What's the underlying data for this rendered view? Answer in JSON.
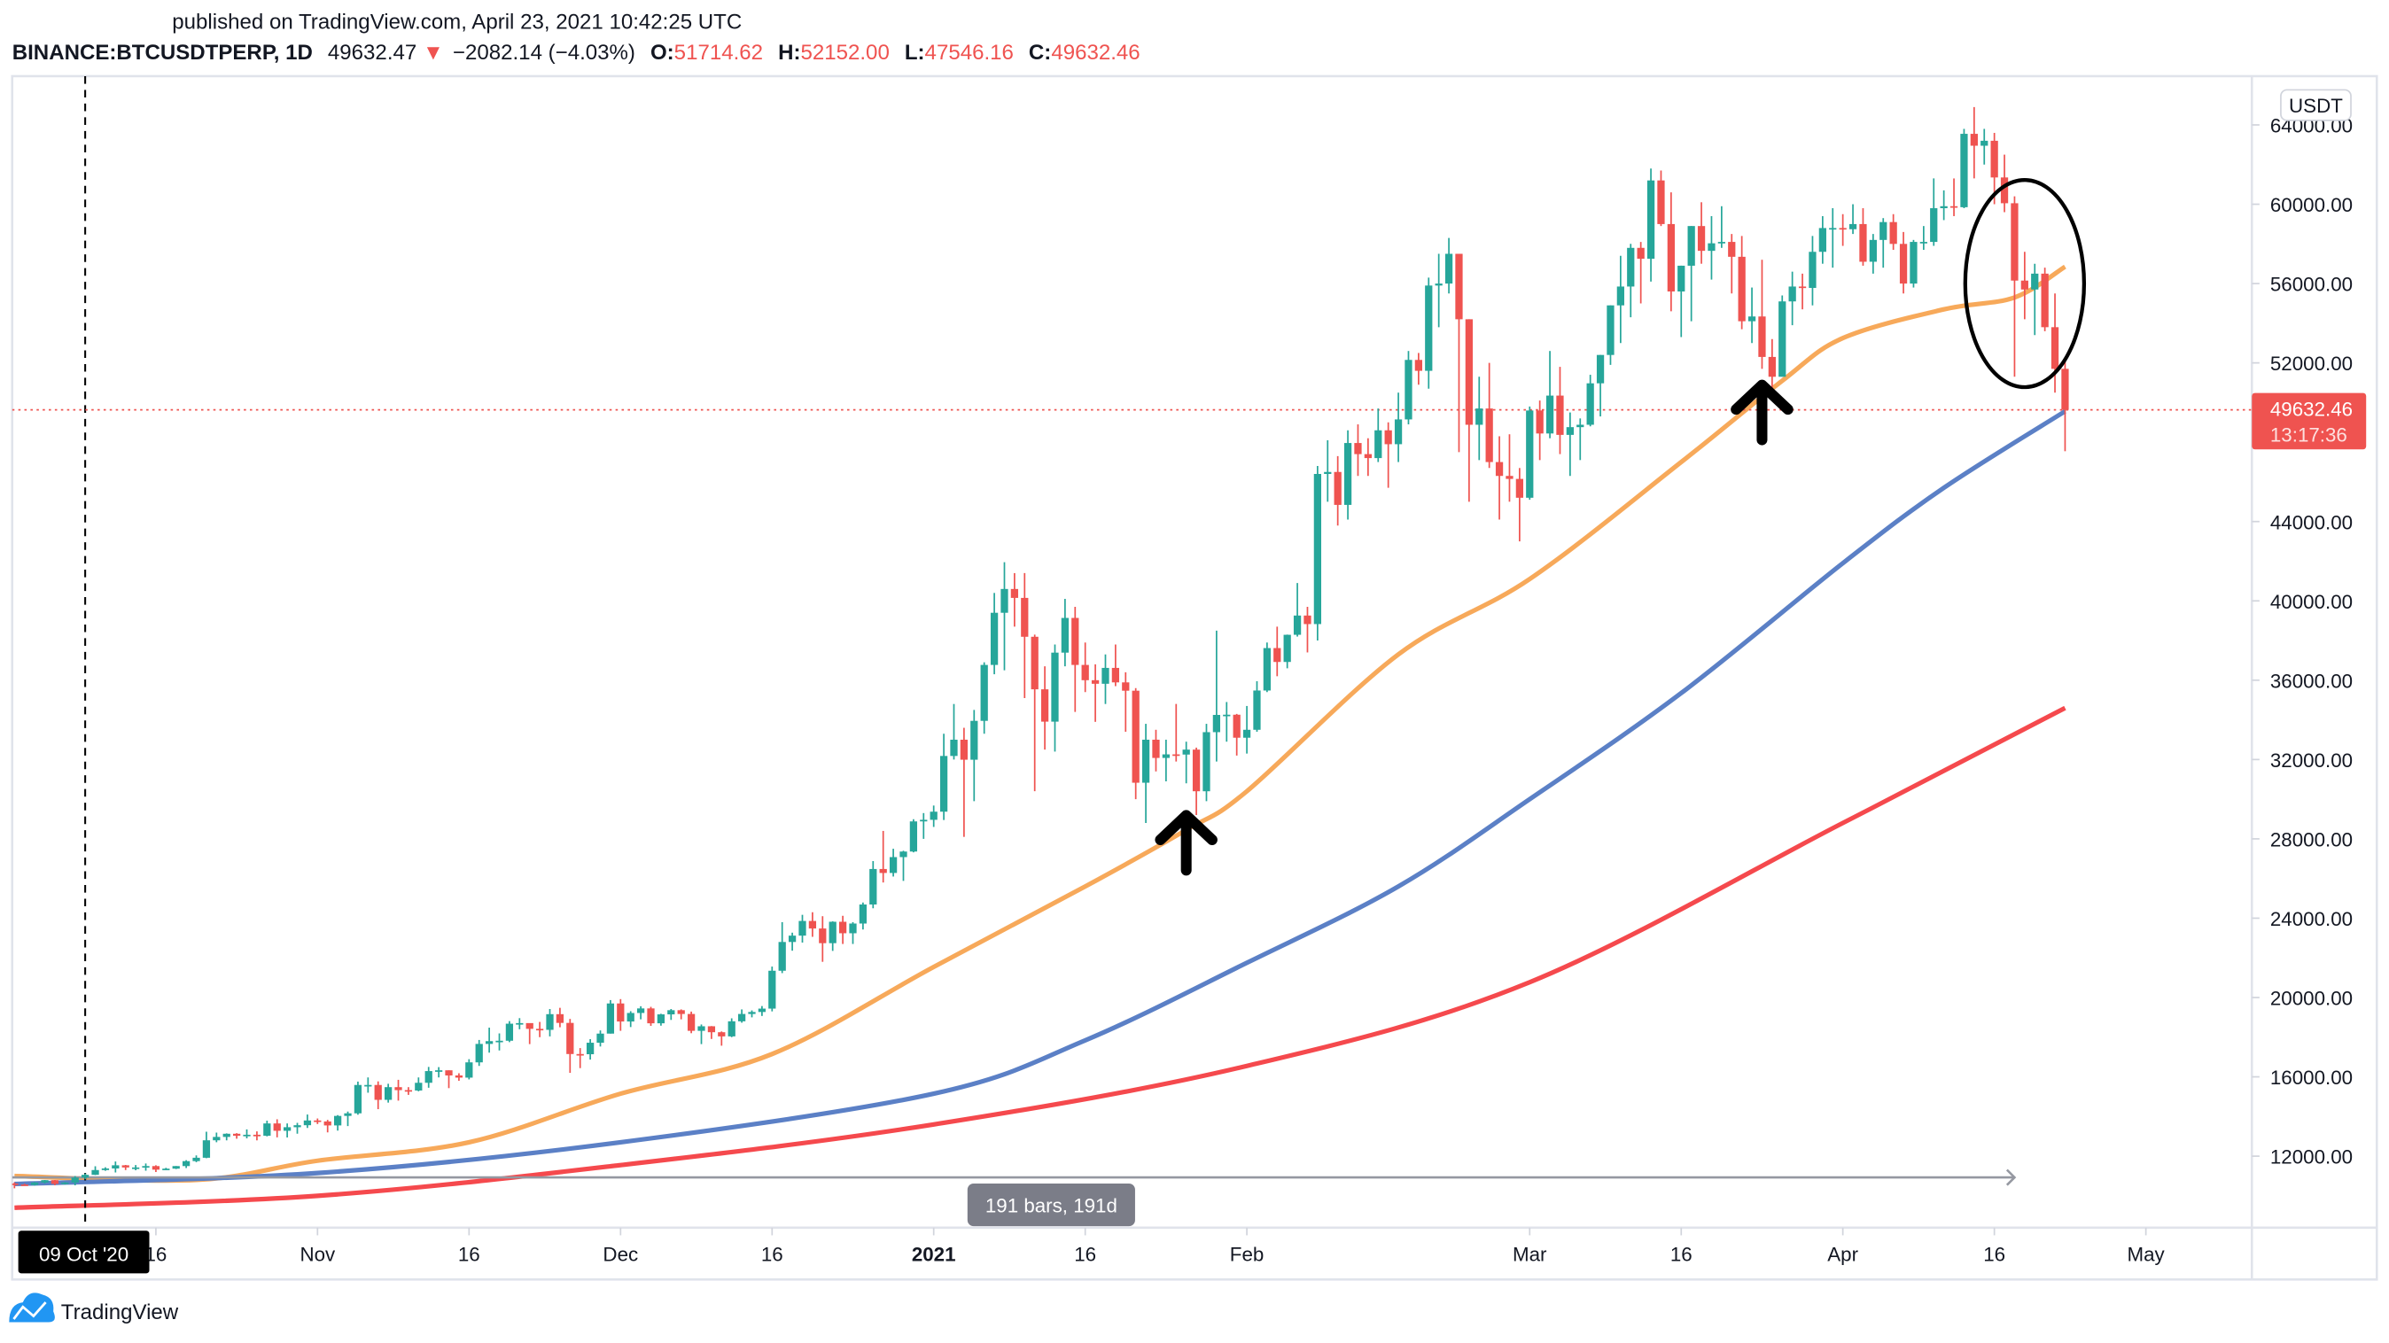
{
  "header": {
    "published": "published on TradingView.com, April 23, 2021 10:42:25 UTC",
    "symbol": "BINANCE:BTCUSDTPERP, 1D",
    "last": "49632.47",
    "change": "−2082.14 (−4.03%)",
    "o_label": "O:",
    "o": "51714.62",
    "h_label": "H:",
    "h": "52152.00",
    "l_label": "L:",
    "l": "47546.16",
    "c_label": "C:",
    "c": "49632.46"
  },
  "price_axis": {
    "currency": "USDT",
    "ticks": [
      "12000.00",
      "16000.00",
      "20000.00",
      "24000.00",
      "28000.00",
      "32000.00",
      "36000.00",
      "40000.00",
      "44000.00",
      "52000.00",
      "56000.00",
      "60000.00",
      "64000.00"
    ],
    "last_price": "49632.46",
    "countdown": "13:17:36"
  },
  "time_axis": {
    "crosshair_label": "09 Oct '20",
    "ticks": [
      {
        "label": "16",
        "date": "2020-10-16"
      },
      {
        "label": "Nov",
        "date": "2020-11-01"
      },
      {
        "label": "16",
        "date": "2020-11-16"
      },
      {
        "label": "Dec",
        "date": "2020-12-01"
      },
      {
        "label": "16",
        "date": "2020-12-16"
      },
      {
        "label": "2021",
        "date": "2021-01-01",
        "bold": true
      },
      {
        "label": "16",
        "date": "2021-01-16"
      },
      {
        "label": "Feb",
        "date": "2021-02-01"
      },
      {
        "label": "Mar",
        "date": "2021-03-01"
      },
      {
        "label": "16",
        "date": "2021-03-16"
      },
      {
        "label": "Apr",
        "date": "2021-04-01"
      },
      {
        "label": "16",
        "date": "2021-04-16"
      },
      {
        "label": "May",
        "date": "2021-05-01"
      }
    ]
  },
  "measure": {
    "label": "191 bars, 191d",
    "from": "2020-10-09",
    "to": "2021-04-18"
  },
  "logo": {
    "text": "TradingView"
  },
  "colors": {
    "up": "#26a69a",
    "down": "#ef5350",
    "ma_orange": "#f7a95a",
    "ma_blue": "#5b80c6",
    "ma_red": "#f5494d",
    "accent": "#2196f3"
  },
  "chart_data": {
    "type": "candlestick",
    "symbol": "BINANCE:BTCUSDTPERP",
    "interval": "1D",
    "start_date": "2020-10-02",
    "ylim": [
      8000,
      66000
    ],
    "grid": false,
    "first_open": 10620,
    "close": [
      10570,
      10550,
      10670,
      10790,
      10600,
      10670,
      10920,
      11060,
      11300,
      11380,
      11540,
      11430,
      11430,
      11500,
      11320,
      11370,
      11500,
      11750,
      11920,
      12800,
      12970,
      13130,
      13030,
      13080,
      13030,
      13650,
      13280,
      13460,
      13560,
      13800,
      13750,
      13550,
      14030,
      14160,
      15590,
      15590,
      14840,
      15480,
      15330,
      15310,
      15700,
      16290,
      16330,
      16070,
      15960,
      16730,
      17660,
      17800,
      17820,
      18680,
      18710,
      18420,
      18370,
      19160,
      18720,
      17150,
      17140,
      17720,
      18180,
      19700,
      18790,
      19220,
      19450,
      18700,
      19150,
      19360,
      19170,
      18320,
      18550,
      18250,
      18040,
      18800,
      19170,
      19270,
      19440,
      21350,
      22800,
      23120,
      23860,
      23480,
      22740,
      23820,
      23240,
      23730,
      24690,
      26480,
      26280,
      27080,
      27360,
      28880,
      28960,
      29370,
      32180,
      33000,
      31990,
      33950,
      36770,
      39400,
      40600,
      40150,
      38190,
      35540,
      33910,
      37390,
      39140,
      36770,
      36000,
      35820,
      36620,
      35890,
      35470,
      30830,
      33000,
      32080,
      32260,
      32250,
      32500,
      30400,
      33380,
      34250,
      34260,
      33100,
      33500,
      35480,
      37620,
      36920,
      38290,
      39260,
      38830,
      46400,
      46500,
      44840,
      47960,
      47400,
      47200,
      48600,
      47900,
      49150,
      52150,
      51600,
      55900,
      56000,
      57500,
      54200,
      48880,
      49700,
      47000,
      46300,
      46150,
      45200,
      49600,
      48440,
      50350,
      48370,
      48760,
      48880,
      50970,
      52400,
      54900,
      55850,
      57800,
      57250,
      61200,
      59000,
      55600,
      56900,
      58900,
      57650,
      58030,
      58100,
      57350,
      54100,
      54340,
      52300,
      51300,
      55100,
      55850,
      55780,
      57600,
      58800,
      58800,
      58740,
      59000,
      57100,
      58200,
      59100,
      58000,
      56000,
      58100,
      58100,
      59800,
      59900,
      59850,
      63550,
      62950,
      63200,
      61350,
      60050,
      56150,
      55700,
      56500,
      53800,
      51700,
      49632.46
    ],
    "high": [
      10680,
      10610,
      10700,
      10800,
      10800,
      10690,
      11000,
      11120,
      11490,
      11440,
      11730,
      11560,
      11550,
      11630,
      11540,
      11410,
      11500,
      11800,
      12040,
      13230,
      13190,
      13150,
      13160,
      13350,
      13250,
      13790,
      13860,
      13650,
      13680,
      14100,
      13900,
      13830,
      14070,
      14250,
      15760,
      15970,
      15770,
      15650,
      15850,
      15480,
      15970,
      16500,
      16490,
      16330,
      16180,
      16890,
      17860,
      18480,
      18190,
      18810,
      18960,
      18700,
      18770,
      19420,
      19480,
      18920,
      17450,
      17900,
      18340,
      19870,
      19920,
      19310,
      19560,
      19530,
      19180,
      19420,
      19400,
      19290,
      18640,
      18560,
      18290,
      18950,
      19400,
      19350,
      19570,
      21560,
      23800,
      23270,
      24170,
      24300,
      24100,
      23840,
      24120,
      23800,
      24790,
      26880,
      28400,
      27500,
      27400,
      28990,
      29300,
      29680,
      33300,
      34800,
      33600,
      34500,
      36900,
      40400,
      41950,
      41400,
      41400,
      38300,
      36700,
      37800,
      40100,
      39700,
      37900,
      36800,
      37300,
      37800,
      36400,
      35600,
      33800,
      33500,
      33000,
      34800,
      32900,
      32600,
      33800,
      38500,
      34900,
      34300,
      34700,
      35950,
      37900,
      38700,
      38300,
      40900,
      39700,
      46800,
      48100,
      47300,
      48600,
      48900,
      48200,
      49700,
      49000,
      50500,
      52600,
      52500,
      56300,
      57500,
      58300,
      57500,
      54200,
      51300,
      52000,
      48300,
      48400,
      46700,
      49800,
      50100,
      52600,
      51800,
      49500,
      49200,
      51400,
      52400,
      54900,
      57400,
      58000,
      58100,
      61800,
      61700,
      60600,
      56900,
      58900,
      60100,
      59400,
      59900,
      58500,
      58400,
      55800,
      57200,
      53200,
      55400,
      56600,
      56500,
      58400,
      59400,
      59800,
      59500,
      60000,
      59800,
      58500,
      59300,
      59500,
      58600,
      58200,
      58900,
      61300,
      60700,
      61300,
      63800,
      64900,
      63800,
      63600,
      62500,
      60400,
      57600,
      57000,
      56800,
      55500,
      52152
    ],
    "low": [
      10380,
      10510,
      10520,
      10620,
      10530,
      10570,
      10530,
      10830,
      11050,
      11260,
      11180,
      11300,
      11290,
      11270,
      11200,
      11300,
      11350,
      11400,
      11700,
      11900,
      12700,
      12800,
      12880,
      12900,
      12800,
      13000,
      12950,
      12940,
      13130,
      13420,
      13620,
      13200,
      13290,
      13520,
      14090,
      15200,
      14370,
      14700,
      14800,
      15090,
      15270,
      15450,
      15970,
      15430,
      15800,
      15870,
      16550,
      17220,
      17330,
      17750,
      18400,
      17650,
      18000,
      18040,
      18500,
      16200,
      16440,
      16870,
      17530,
      18180,
      18320,
      18510,
      18900,
      18570,
      18580,
      18870,
      18900,
      18200,
      17650,
      17910,
      17570,
      18000,
      18730,
      19000,
      19070,
      19300,
      21230,
      22360,
      22770,
      23060,
      21800,
      22350,
      22700,
      22700,
      23430,
      24500,
      25800,
      26100,
      25880,
      27320,
      28000,
      28600,
      28950,
      32000,
      28100,
      29900,
      33300,
      36300,
      36500,
      38700,
      35100,
      30400,
      32500,
      32400,
      36700,
      34400,
      35400,
      33900,
      34800,
      35700,
      33400,
      30000,
      28800,
      31400,
      30900,
      31900,
      30800,
      29200,
      29900,
      31900,
      32900,
      32200,
      32300,
      33400,
      35400,
      36200,
      36600,
      38200,
      37400,
      38000,
      45000,
      43800,
      44100,
      46300,
      46300,
      47000,
      45700,
      47000,
      48900,
      50900,
      50700,
      53800,
      55500,
      47500,
      45000,
      47100,
      46700,
      44100,
      45000,
      43000,
      45100,
      47100,
      48200,
      47400,
      46300,
      47100,
      48800,
      49300,
      51900,
      53000,
      54300,
      55000,
      56100,
      58900,
      54600,
      53300,
      54100,
      57000,
      56200,
      57800,
      55500,
      53700,
      53000,
      51700,
      50400,
      51300,
      53900,
      54700,
      54900,
      57000,
      56800,
      57900,
      58500,
      56900,
      56500,
      56800,
      57700,
      55500,
      55800,
      57700,
      57900,
      59200,
      59400,
      59800,
      61300,
      62000,
      60000,
      59600,
      51300,
      54200,
      53400,
      53600,
      50500,
      47546.16
    ],
    "moving_averages": [
      {
        "color": "#f7a95a",
        "points": [
          [
            "2020-10-02",
            11000
          ],
          [
            "2020-10-20",
            10800
          ],
          [
            "2020-11-01",
            11770
          ],
          [
            "2020-11-16",
            12700
          ],
          [
            "2020-12-01",
            15150
          ],
          [
            "2020-12-16",
            17150
          ],
          [
            "2021-01-01",
            21540
          ],
          [
            "2021-01-16",
            25600
          ],
          [
            "2021-01-26",
            28450
          ],
          [
            "2021-02-01",
            30400
          ],
          [
            "2021-02-16",
            37300
          ],
          [
            "2021-03-01",
            41100
          ],
          [
            "2021-03-16",
            47000
          ],
          [
            "2021-03-26",
            51100
          ],
          [
            "2021-04-01",
            53250
          ],
          [
            "2021-04-11",
            54700
          ],
          [
            "2021-04-18",
            55300
          ],
          [
            "2021-04-23",
            56850
          ]
        ]
      },
      {
        "color": "#5b80c6",
        "points": [
          [
            "2020-10-02",
            10600
          ],
          [
            "2020-11-01",
            11150
          ],
          [
            "2020-12-01",
            12700
          ],
          [
            "2021-01-01",
            15150
          ],
          [
            "2021-01-16",
            17840
          ],
          [
            "2021-02-01",
            21750
          ],
          [
            "2021-02-16",
            25600
          ],
          [
            "2021-03-01",
            30000
          ],
          [
            "2021-03-16",
            35350
          ],
          [
            "2021-04-01",
            41900
          ],
          [
            "2021-04-11",
            45700
          ],
          [
            "2021-04-23",
            49560
          ]
        ]
      },
      {
        "color": "#f5494d",
        "points": [
          [
            "2020-10-02",
            9400
          ],
          [
            "2020-11-01",
            10000
          ],
          [
            "2020-12-01",
            11550
          ],
          [
            "2021-01-01",
            13600
          ],
          [
            "2021-02-01",
            16550
          ],
          [
            "2021-03-01",
            20770
          ],
          [
            "2021-04-01",
            28800
          ],
          [
            "2021-04-23",
            34600
          ]
        ]
      }
    ],
    "annotations": [
      {
        "type": "arrow-up",
        "date": "2021-01-26",
        "value": 27800
      },
      {
        "type": "arrow-up",
        "date": "2021-03-24",
        "value": 49500
      },
      {
        "type": "ellipse",
        "date": "2021-04-19",
        "value": 56000
      }
    ]
  }
}
